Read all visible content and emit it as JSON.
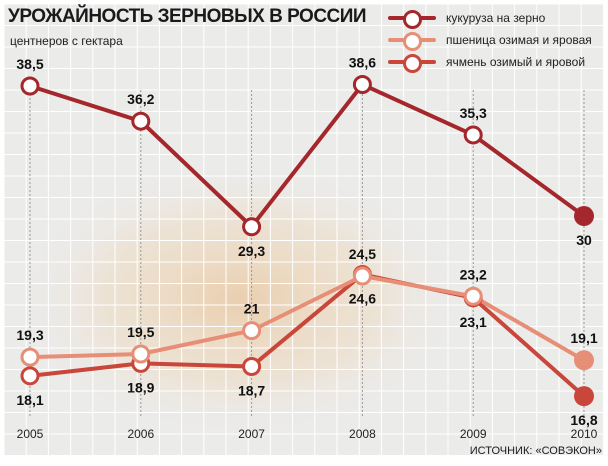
{
  "chart_data": {
    "type": "line",
    "title": "УРОЖАЙНОСТЬ ЗЕРНОВЫХ В РОССИИ",
    "subtitle": "центнеров с гектара",
    "source": "ИСТОЧНИК: «СОВЭКОН»",
    "xlabel": "",
    "ylabel": "центнеров с гектара",
    "x": [
      "2005",
      "2006",
      "2007",
      "2008",
      "2009",
      "2010"
    ],
    "grid": true,
    "legend_position": "top-right",
    "axis_break": "y-axis broken between ~25 and ~29",
    "series": [
      {
        "name": "кукуруза на зерно",
        "color": "#a3272b",
        "values": [
          38.5,
          36.2,
          29.3,
          38.6,
          35.3,
          30
        ],
        "labels": [
          "38,5",
          "36,2",
          "29,3",
          "38,6",
          "35,3",
          "30"
        ],
        "label_side": [
          "above",
          "above",
          "below",
          "above",
          "above",
          "below"
        ]
      },
      {
        "name": "пшеница озимая и яровая",
        "color": "#e78e77",
        "values": [
          19.3,
          19.5,
          21,
          24.5,
          23.2,
          19.1
        ],
        "labels": [
          "19,3",
          "19,5",
          "21",
          "24,5",
          "23,2",
          "19,1"
        ],
        "label_side": [
          "above",
          "above",
          "above",
          "above",
          "above",
          "above"
        ]
      },
      {
        "name": "ячмень озимый и яровой",
        "color": "#c9463b",
        "values": [
          18.1,
          18.9,
          18.7,
          24.6,
          23.1,
          16.8
        ],
        "labels": [
          "18,1",
          "18,9",
          "18,7",
          "24,6",
          "23,1",
          "16,8"
        ],
        "label_side": [
          "below",
          "below",
          "below",
          "below",
          "below",
          "below"
        ]
      }
    ]
  }
}
